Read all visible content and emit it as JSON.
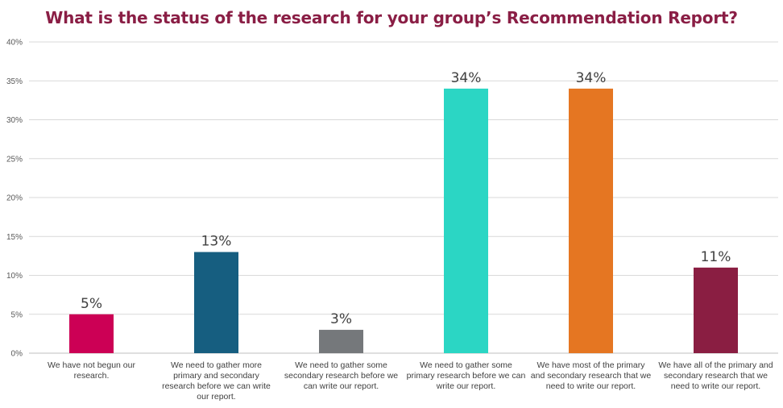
{
  "title": "What is the status of the research for your group’s Recommendation Report?",
  "chart_data": {
    "type": "bar",
    "title": "What is the status of the research for your group’s Recommendation Report?",
    "xlabel": "",
    "ylabel": "",
    "ylim": [
      0,
      40
    ],
    "yticks": [
      0,
      5,
      10,
      15,
      20,
      25,
      30,
      35,
      40
    ],
    "ytick_labels": [
      "0%",
      "5%",
      "10%",
      "15%",
      "20%",
      "25%",
      "30%",
      "35%",
      "40%"
    ],
    "grid": true,
    "legend": "none",
    "categories": [
      "We have not begun our research.",
      "We need to gather more primary and secondary research before we can write our report.",
      "We need to gather some secondary research before we can write our report.",
      "We need to gather some primary research before we can write our report.",
      "We have most of the primary and secondary research that we need to write our report.",
      "We have all of the primary and secondary research that we need to write our report."
    ],
    "values": [
      5,
      13,
      3,
      34,
      34,
      11
    ],
    "data_labels": [
      "5%",
      "13%",
      "3%",
      "34%",
      "34%",
      "11%"
    ],
    "colors": [
      "#cc0055",
      "#165e80",
      "#75787b",
      "#2bd6c4",
      "#e57622",
      "#8a1e42"
    ]
  }
}
